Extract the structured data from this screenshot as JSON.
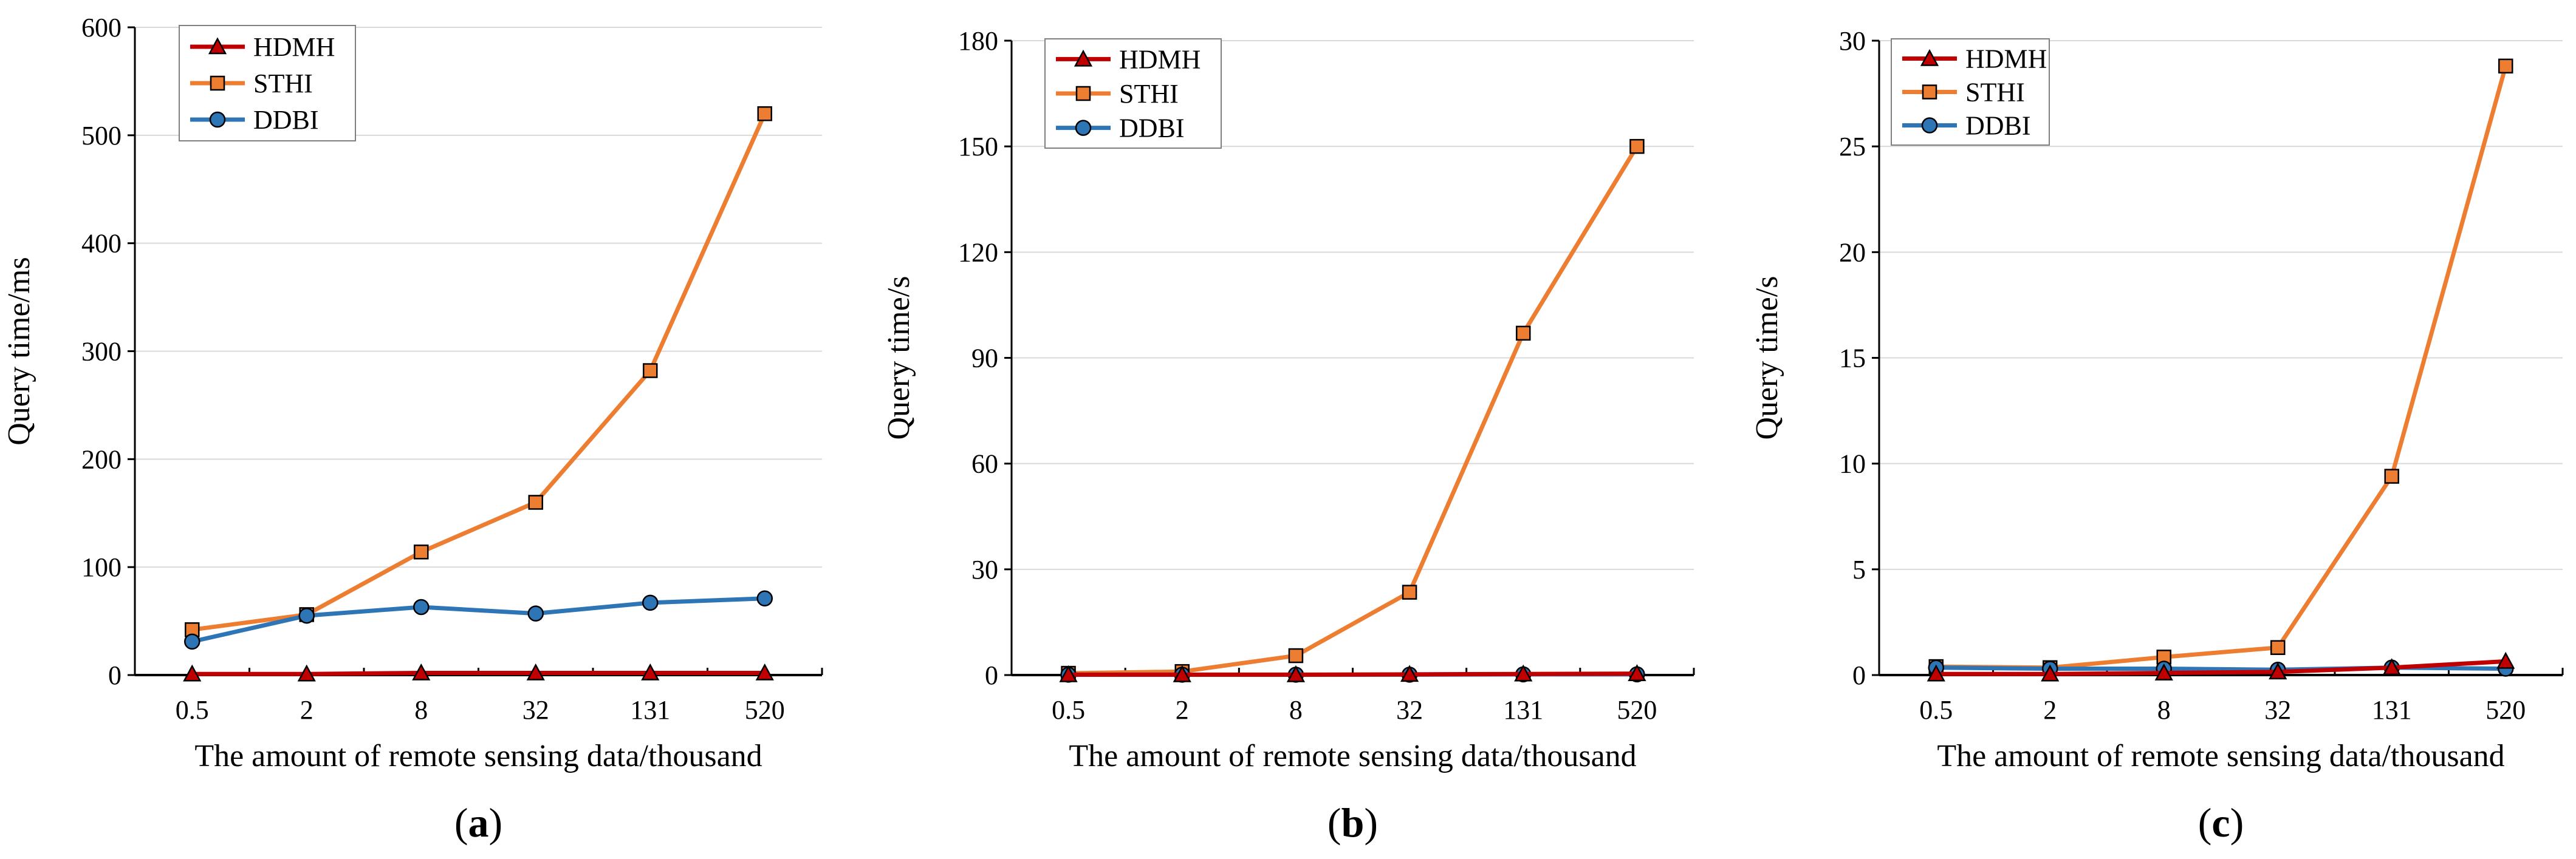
{
  "figure": {
    "panels": [
      "a",
      "b",
      "c"
    ]
  },
  "chart_data": [
    {
      "type": "line",
      "panel_label": "a",
      "xlabel": "The amount of remote sensing data/thousand",
      "ylabel": "Query time/ms",
      "categories": [
        "0.5",
        "2",
        "8",
        "32",
        "131",
        "520"
      ],
      "ylim": [
        0,
        600
      ],
      "yticks": [
        "0",
        "100",
        "200",
        "300",
        "400",
        "500",
        "600"
      ],
      "grid": true,
      "legend_position": "top-left",
      "series": [
        {
          "name": "HDMH",
          "color": "#C00000",
          "marker": "triangle",
          "values": [
            1,
            1,
            2,
            2,
            2,
            2
          ]
        },
        {
          "name": "STHI",
          "color": "#ED7D31",
          "marker": "square",
          "values": [
            42,
            56,
            114,
            160,
            282,
            520
          ]
        },
        {
          "name": "DDBI",
          "color": "#2E75B6",
          "marker": "circle",
          "values": [
            31,
            55,
            63,
            57,
            67,
            71
          ]
        }
      ]
    },
    {
      "type": "line",
      "panel_label": "b",
      "xlabel": "The amount of remote sensing data/thousand",
      "ylabel": "Query time/s",
      "categories": [
        "0.5",
        "2",
        "8",
        "32",
        "131",
        "520"
      ],
      "ylim": [
        0,
        180
      ],
      "yticks": [
        "0",
        "30",
        "60",
        "90",
        "120",
        "150",
        "180"
      ],
      "grid": true,
      "legend_position": "top-left",
      "series": [
        {
          "name": "HDMH",
          "color": "#C00000",
          "marker": "triangle",
          "values": [
            0.1,
            0.1,
            0.1,
            0.2,
            0.3,
            0.4
          ]
        },
        {
          "name": "STHI",
          "color": "#ED7D31",
          "marker": "square",
          "values": [
            0.5,
            1,
            5.5,
            23.5,
            97,
            150
          ]
        },
        {
          "name": "DDBI",
          "color": "#2E75B6",
          "marker": "circle",
          "values": [
            0.1,
            0.1,
            0.1,
            0.1,
            0.2,
            0.2
          ]
        }
      ]
    },
    {
      "type": "line",
      "panel_label": "c",
      "xlabel": "The amount of remote sensing data/thousand",
      "ylabel": "Query time/s",
      "categories": [
        "0.5",
        "2",
        "8",
        "32",
        "131",
        "520"
      ],
      "ylim": [
        0,
        30
      ],
      "yticks": [
        "0",
        "5",
        "10",
        "15",
        "20",
        "25",
        "30"
      ],
      "grid": true,
      "legend_position": "top-left",
      "series": [
        {
          "name": "HDMH",
          "color": "#C00000",
          "marker": "triangle",
          "values": [
            0.05,
            0.05,
            0.1,
            0.15,
            0.35,
            0.65
          ]
        },
        {
          "name": "STHI",
          "color": "#ED7D31",
          "marker": "square",
          "values": [
            0.4,
            0.35,
            0.85,
            1.3,
            9.4,
            28.8
          ]
        },
        {
          "name": "DDBI",
          "color": "#2E75B6",
          "marker": "circle",
          "values": [
            0.35,
            0.3,
            0.3,
            0.25,
            0.35,
            0.3
          ]
        }
      ]
    }
  ]
}
